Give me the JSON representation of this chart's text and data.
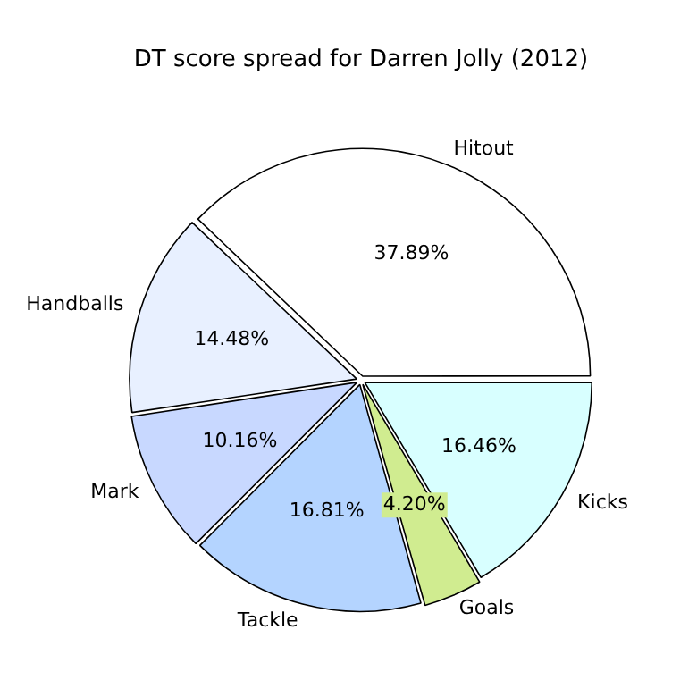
{
  "chart_data": {
    "type": "pie",
    "title": "DT score spread for Darren Jolly (2012)",
    "categories": [
      "Hitout",
      "Handballs",
      "Mark",
      "Tackle",
      "Goals",
      "Kicks"
    ],
    "values": [
      37.89,
      14.48,
      10.16,
      16.81,
      4.2,
      16.46
    ],
    "value_labels": [
      "37.89%",
      "14.48%",
      "10.16%",
      "16.81%",
      "4.20%",
      "16.46%"
    ],
    "colors": [
      "#ffffff",
      "#e8f0ff",
      "#c8d8ff",
      "#b4d4ff",
      "#d0ec90",
      "#d8ffff"
    ],
    "legend": false
  }
}
